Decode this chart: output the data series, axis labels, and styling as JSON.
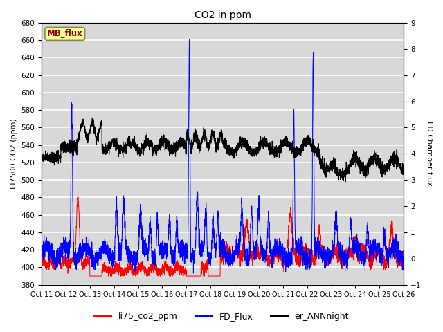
{
  "title": "CO2 in ppm",
  "ylabel_left": "LI7500 CO2 (ppm)",
  "ylabel_right": "FD Chamber flux",
  "ylim_left": [
    380,
    680
  ],
  "ylim_right": [
    -1.0,
    9.0
  ],
  "yticks_left": [
    380,
    400,
    420,
    440,
    460,
    480,
    500,
    520,
    540,
    560,
    580,
    600,
    620,
    640,
    660,
    680
  ],
  "yticks_right": [
    -1.0,
    0.0,
    1.0,
    2.0,
    3.0,
    4.0,
    5.0,
    6.0,
    7.0,
    8.0,
    9.0
  ],
  "xtick_labels": [
    "Oct 11",
    "Oct 12",
    "Oct 13",
    "Oct 14",
    "Oct 15",
    "Oct 16",
    "Oct 17",
    "Oct 18",
    "Oct 19",
    "Oct 20",
    "Oct 21",
    "Oct 22",
    "Oct 23",
    "Oct 24",
    "Oct 25",
    "Oct 26"
  ],
  "annotation_text": "MB_flux",
  "annotation_bg": "#FFFF99",
  "annotation_fg": "#8B0000",
  "legend_labels": [
    "li75_co2_ppm",
    "FD_Flux",
    "er_ANNnight"
  ],
  "legend_colors": [
    "#FF0000",
    "#0000FF",
    "#000000"
  ],
  "bg_color": "#D8D8D8",
  "grid_color": "#FFFFFF",
  "n_points": 3600
}
